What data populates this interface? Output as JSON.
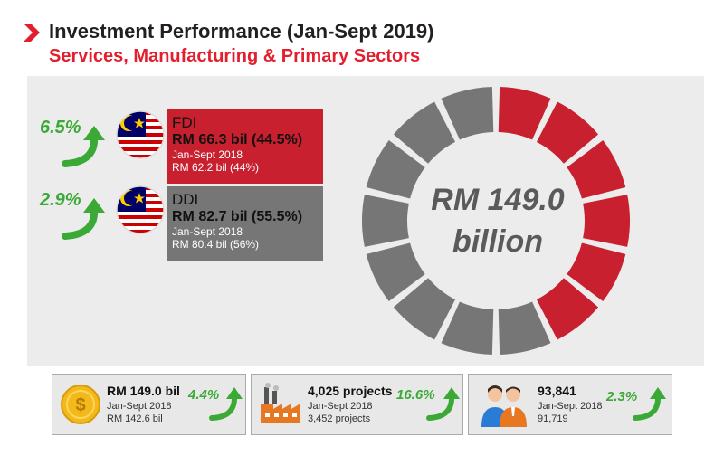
{
  "header": {
    "title": "Investment Performance (Jan-Sept 2019)",
    "subtitle": "Services, Manufacturing & Primary Sectors"
  },
  "fdi": {
    "growth": "6.5%",
    "label": "FDI",
    "value": "RM 66.3 bil (44.5%)",
    "prev_period": "Jan-Sept 2018",
    "prev_value": "RM 62.2 bil (44%)"
  },
  "ddi": {
    "growth": "2.9%",
    "label": "DDI",
    "value": "RM 82.7 bil (55.5%)",
    "prev_period": "Jan-Sept 2018",
    "prev_value": "RM 80.4 bil (56%)"
  },
  "donut": {
    "center_line1": "RM 149.0",
    "center_line2": "billion"
  },
  "stats": [
    {
      "value": "RM 149.0  bil",
      "period": "Jan-Sept 2018",
      "prev": "RM 142.6 bil",
      "growth": "4.4%"
    },
    {
      "value": "4,025 projects",
      "period": "Jan-Sept 2018",
      "prev": "3,452 projects",
      "growth": "16.6%"
    },
    {
      "value": "93,841",
      "period": "Jan-Sept 2018",
      "prev": "91,719",
      "growth": "2.3%"
    }
  ],
  "chart_data": {
    "type": "pie",
    "categories": [
      "FDI",
      "DDI"
    ],
    "values": [
      66.3,
      82.7
    ],
    "colors": [
      "#c8202e",
      "#767676"
    ]
  }
}
